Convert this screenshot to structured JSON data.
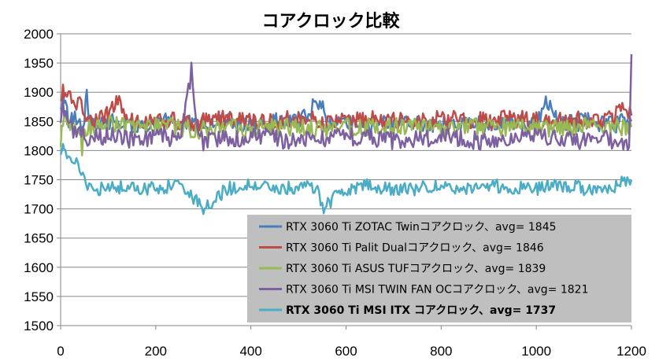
{
  "chart_data": {
    "type": "line",
    "title": "コアクロック比較",
    "xlabel": "",
    "ylabel": "",
    "xlim": [
      0,
      1200
    ],
    "ylim": [
      1500,
      2000
    ],
    "x_ticks": [
      0,
      200,
      400,
      600,
      800,
      1000,
      1200
    ],
    "y_ticks": [
      1500,
      1550,
      1600,
      1650,
      1700,
      1750,
      1800,
      1850,
      1900,
      1950,
      2000
    ],
    "grid": "horizontal",
    "legend_position": "bottom-right",
    "series": [
      {
        "name": "RTX 3060 Ti ZOTAC Twinコアクロック、avg= 1845",
        "color": "#4a7ebb",
        "bold": false,
        "values_description_only": false,
        "x": [
          0,
          5,
          10,
          20,
          30,
          40,
          50,
          55,
          60,
          80,
          100,
          150,
          200,
          250,
          300,
          350,
          400,
          450,
          500,
          545,
          560,
          600,
          650,
          700,
          750,
          800,
          850,
          900,
          950,
          1000,
          1020,
          1050,
          1100,
          1150,
          1200
        ],
        "y": [
          1860,
          1900,
          1875,
          1845,
          1860,
          1840,
          1860,
          1905,
          1860,
          1845,
          1850,
          1845,
          1850,
          1845,
          1845,
          1850,
          1845,
          1850,
          1845,
          1890,
          1845,
          1850,
          1845,
          1845,
          1850,
          1845,
          1850,
          1845,
          1845,
          1850,
          1885,
          1845,
          1850,
          1845,
          1850
        ]
      },
      {
        "name": "RTX 3060 Ti Palit Dualコアクロック、avg= 1846",
        "color": "#be4b48",
        "bold": false,
        "x": [
          0,
          5,
          10,
          20,
          30,
          40,
          50,
          60,
          80,
          100,
          120,
          150,
          200,
          250,
          300,
          350,
          400,
          450,
          500,
          550,
          600,
          650,
          700,
          750,
          800,
          850,
          900,
          950,
          1000,
          1050,
          1100,
          1150,
          1190,
          1200
        ],
        "y": [
          1880,
          1905,
          1895,
          1890,
          1875,
          1880,
          1860,
          1855,
          1850,
          1860,
          1890,
          1850,
          1855,
          1850,
          1850,
          1855,
          1850,
          1850,
          1855,
          1850,
          1850,
          1855,
          1850,
          1850,
          1855,
          1850,
          1850,
          1855,
          1850,
          1850,
          1855,
          1850,
          1875,
          1860
        ]
      },
      {
        "name": "RTX 3060 Ti ASUS TUFコアクロック、avg= 1839",
        "color": "#98b954",
        "bold": false,
        "x": [
          0,
          5,
          10,
          20,
          30,
          40,
          45,
          50,
          60,
          80,
          100,
          150,
          200,
          250,
          300,
          350,
          400,
          450,
          500,
          550,
          600,
          650,
          700,
          750,
          800,
          850,
          900,
          950,
          1000,
          1050,
          1100,
          1150,
          1200
        ],
        "y": [
          1820,
          1840,
          1850,
          1835,
          1840,
          1830,
          1800,
          1840,
          1840,
          1840,
          1845,
          1840,
          1840,
          1840,
          1835,
          1840,
          1840,
          1840,
          1840,
          1835,
          1840,
          1840,
          1840,
          1840,
          1835,
          1840,
          1840,
          1840,
          1840,
          1835,
          1840,
          1840,
          1840
        ]
      },
      {
        "name": "RTX 3060 Ti MSI TWIN FAN OCコアクロック、avg= 1821",
        "color": "#7d60a0",
        "bold": false,
        "x": [
          0,
          5,
          10,
          20,
          30,
          40,
          50,
          60,
          80,
          100,
          150,
          200,
          250,
          275,
          290,
          300,
          350,
          400,
          450,
          500,
          550,
          600,
          650,
          700,
          750,
          800,
          850,
          900,
          950,
          1000,
          1050,
          1100,
          1150,
          1195,
          1200
        ],
        "y": [
          1850,
          1880,
          1860,
          1845,
          1830,
          1835,
          1820,
          1825,
          1820,
          1825,
          1820,
          1825,
          1820,
          1935,
          1820,
          1815,
          1820,
          1825,
          1820,
          1815,
          1820,
          1825,
          1820,
          1815,
          1820,
          1825,
          1820,
          1815,
          1820,
          1825,
          1820,
          1815,
          1820,
          1815,
          1965
        ]
      },
      {
        "name": "RTX 3060 Ti MSI ITX コアクロック、avg= 1737",
        "color": "#4bacc6",
        "bold": true,
        "x": [
          0,
          5,
          10,
          20,
          30,
          40,
          50,
          60,
          70,
          80,
          100,
          150,
          200,
          250,
          300,
          350,
          400,
          450,
          500,
          540,
          550,
          600,
          650,
          700,
          750,
          800,
          850,
          900,
          950,
          1000,
          1050,
          1100,
          1150,
          1200
        ],
        "y": [
          1785,
          1800,
          1795,
          1790,
          1780,
          1765,
          1750,
          1735,
          1740,
          1735,
          1740,
          1735,
          1735,
          1740,
          1700,
          1735,
          1740,
          1735,
          1735,
          1740,
          1700,
          1735,
          1740,
          1735,
          1735,
          1740,
          1735,
          1740,
          1735,
          1735,
          1740,
          1735,
          1735,
          1750
        ]
      }
    ]
  }
}
